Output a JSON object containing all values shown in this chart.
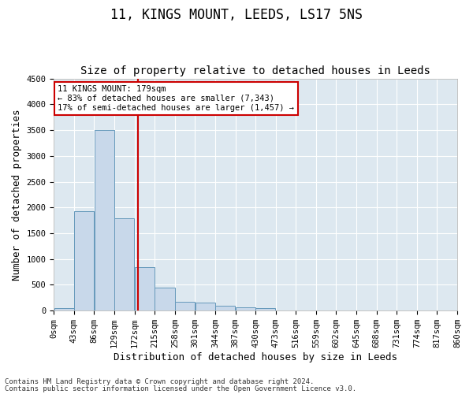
{
  "title": "11, KINGS MOUNT, LEEDS, LS17 5NS",
  "subtitle": "Size of property relative to detached houses in Leeds",
  "xlabel": "Distribution of detached houses by size in Leeds",
  "ylabel": "Number of detached properties",
  "bar_color": "#c8d8ea",
  "bar_edgecolor": "#6699bb",
  "annotation_line1": "11 KINGS MOUNT: 179sqm",
  "annotation_line2": "← 83% of detached houses are smaller (7,343)",
  "annotation_line3": "17% of semi-detached houses are larger (1,457) →",
  "annotation_box_color": "#ffffff",
  "annotation_box_edgecolor": "#cc0000",
  "vline_x": 179,
  "vline_color": "#cc0000",
  "footer_line1": "Contains HM Land Registry data © Crown copyright and database right 2024.",
  "footer_line2": "Contains public sector information licensed under the Open Government Licence v3.0.",
  "bin_edges": [
    0,
    43,
    86,
    129,
    172,
    215,
    258,
    301,
    344,
    387,
    430,
    473,
    516,
    559,
    602,
    645,
    688,
    731,
    774,
    817,
    860
  ],
  "bar_heights": [
    50,
    1920,
    3500,
    1790,
    840,
    450,
    175,
    160,
    95,
    60,
    55,
    0,
    0,
    0,
    0,
    0,
    0,
    0,
    0,
    0
  ],
  "ylim": [
    0,
    4500
  ],
  "yticks": [
    0,
    500,
    1000,
    1500,
    2000,
    2500,
    3000,
    3500,
    4000,
    4500
  ],
  "background_color": "#ffffff",
  "plot_background_color": "#dde8f0",
  "title_fontsize": 12,
  "subtitle_fontsize": 10,
  "ylabel_fontsize": 9,
  "xlabel_fontsize": 9,
  "tick_fontsize": 7.5,
  "footer_fontsize": 6.5
}
